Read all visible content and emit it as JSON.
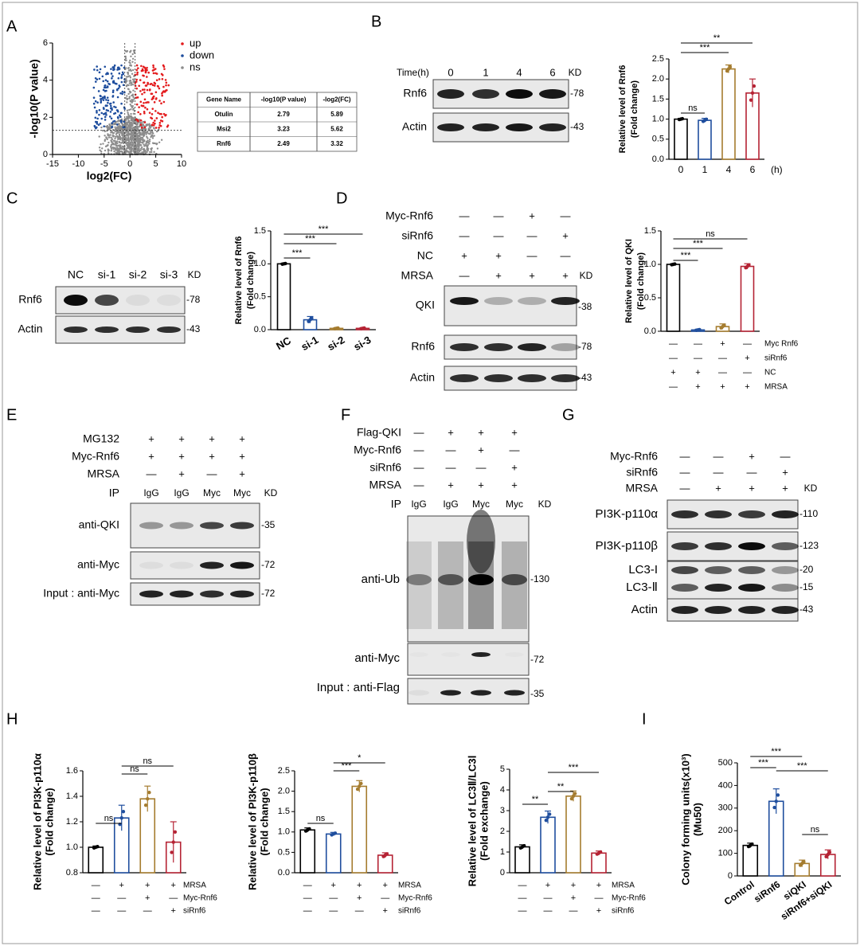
{
  "figure": {
    "panel_labels": [
      "A",
      "B",
      "C",
      "D",
      "E",
      "F",
      "G",
      "H",
      "I"
    ]
  },
  "colors": {
    "axis": "#000000",
    "up": "#e31a1c",
    "down": "#1f4e9e",
    "ns": "#8c8c8c",
    "black": "#000000",
    "blue": "#1f4e9e",
    "gold": "#a57c2f",
    "red": "#b52334",
    "blot_bg": "#e9e9e9"
  },
  "chart_data": [
    {
      "id": "A",
      "type": "scatter",
      "title": "",
      "xlabel": "log2(FC)",
      "ylabel": "-log10(P value)",
      "xlim": [
        -15,
        10
      ],
      "ylim": [
        0,
        6
      ],
      "xticks": [
        "-15",
        "-10",
        "-5",
        "0",
        "5",
        "10"
      ],
      "yticks": [
        "0",
        "2",
        "4",
        "6"
      ],
      "legend": [
        {
          "name": "up",
          "color": "#e31a1c"
        },
        {
          "name": "down",
          "color": "#1f4e9e"
        },
        {
          "name": "ns",
          "color": "#8c8c8c"
        }
      ],
      "table": {
        "headers": [
          "Gene Name",
          "-log10(P value)",
          "-log2(FC)"
        ],
        "rows": [
          [
            "Otulin",
            "2.79",
            "5.89"
          ],
          [
            "Msi2",
            "3.23",
            "5.62"
          ],
          [
            "Rnf6",
            "2.49",
            "3.32"
          ]
        ]
      }
    },
    {
      "id": "B",
      "type": "bar",
      "ylabel": "Relative  level of Rnf6 (Fold change)",
      "categories": [
        "0",
        "1",
        "4",
        "6"
      ],
      "x_unit": "(h)",
      "values": [
        1.0,
        0.97,
        2.25,
        1.65
      ],
      "errors": [
        0.02,
        0.05,
        0.1,
        0.35
      ],
      "ylim": [
        0,
        2.5
      ],
      "yticks": [
        "0.0",
        "0.5",
        "1.0",
        "1.5",
        "2.0",
        "2.5"
      ],
      "sig": [
        {
          "label": "ns",
          "from": 0,
          "to": 1
        },
        {
          "label": "***",
          "from": 0,
          "to": 2
        },
        {
          "label": "**",
          "from": 0,
          "to": 3
        }
      ],
      "blot": {
        "time_label": "Time(h)",
        "lanes": [
          "0",
          "1",
          "4",
          "6"
        ],
        "kd": "KD",
        "rows": [
          {
            "name": "Rnf6",
            "kd": "-78"
          },
          {
            "name": "Actin",
            "kd": "-43"
          }
        ]
      }
    },
    {
      "id": "C",
      "type": "bar",
      "ylabel": "Relative  level of Rnf6 (Fold change)",
      "categories": [
        "NC",
        "si-1",
        "si-2",
        "si-3"
      ],
      "values": [
        1.0,
        0.15,
        0.02,
        0.02
      ],
      "errors": [
        0.01,
        0.05,
        0.01,
        0.01
      ],
      "ylim": [
        0,
        1.5
      ],
      "yticks": [
        "0.0",
        "0.5",
        "1.0",
        "1.5"
      ],
      "sig": [
        {
          "label": "***",
          "from": 0,
          "to": 1
        },
        {
          "label": "***",
          "from": 0,
          "to": 2
        },
        {
          "label": "***",
          "from": 0,
          "to": 3
        }
      ],
      "blot": {
        "lanes": [
          "NC",
          "si-1",
          "si-2",
          "si-3"
        ],
        "kd": "KD",
        "rows": [
          {
            "name": "Rnf6",
            "kd": "-78"
          },
          {
            "name": "Actin",
            "kd": "-43"
          }
        ]
      }
    },
    {
      "id": "D",
      "type": "bar",
      "ylabel": "Relative  level of QKI (Fold change)",
      "categories": [
        "1",
        "2",
        "3",
        "4"
      ],
      "values": [
        1.0,
        0.02,
        0.07,
        0.97
      ],
      "errors": [
        0.01,
        0.01,
        0.04,
        0.04
      ],
      "ylim": [
        0,
        1.5
      ],
      "yticks": [
        "0.0",
        "0.5",
        "1.0",
        "1.5"
      ],
      "sig": [
        {
          "label": "***",
          "from": 0,
          "to": 1
        },
        {
          "label": "***",
          "from": 0,
          "to": 2
        },
        {
          "label": "ns",
          "from": 0,
          "to": 3
        }
      ],
      "conditions": [
        {
          "name": "Myc  Rnf6",
          "signs": [
            "—",
            "—",
            "+",
            "—"
          ]
        },
        {
          "name": "siRnf6",
          "signs": [
            "—",
            "—",
            "—",
            "+"
          ]
        },
        {
          "name": "NC",
          "signs": [
            "+",
            "+",
            "—",
            "—"
          ]
        },
        {
          "name": "MRSA",
          "signs": [
            "—",
            "+",
            "+",
            "+"
          ]
        }
      ],
      "blot": {
        "conditions": [
          {
            "name": "Myc-Rnf6",
            "signs": [
              "—",
              "—",
              "+",
              "—"
            ]
          },
          {
            "name": "siRnf6",
            "signs": [
              "—",
              "—",
              "—",
              "+"
            ]
          },
          {
            "name": "NC",
            "signs": [
              "+",
              "+",
              "—",
              "—"
            ]
          },
          {
            "name": "MRSA",
            "signs": [
              "—",
              "+",
              "+",
              "+"
            ]
          }
        ],
        "kd": "KD",
        "rows": [
          {
            "name": "QKI",
            "kd": "-38"
          },
          {
            "name": "Rnf6",
            "kd": "-78"
          },
          {
            "name": "Actin",
            "kd": "-43"
          }
        ]
      }
    },
    {
      "id": "E",
      "type": "blot",
      "conditions": [
        {
          "name": "MG132",
          "signs": [
            "+",
            "+",
            "+",
            "+"
          ]
        },
        {
          "name": "Myc-Rnf6",
          "signs": [
            "+",
            "+",
            "+",
            "+"
          ]
        },
        {
          "name": "MRSA",
          "signs": [
            "—",
            "+",
            "—",
            "+"
          ]
        }
      ],
      "ip_label": "IP",
      "lanes": [
        "IgG",
        "IgG",
        "Myc",
        "Myc"
      ],
      "kd": "KD",
      "rows": [
        {
          "name": "anti-QKI",
          "kd": "-35"
        },
        {
          "name": "anti-Myc",
          "kd": "-72"
        },
        {
          "name": "Input : anti-Myc",
          "kd": "-72"
        }
      ]
    },
    {
      "id": "F",
      "type": "blot",
      "conditions": [
        {
          "name": "Flag-QKI",
          "signs": [
            "—",
            "+",
            "+",
            "+"
          ]
        },
        {
          "name": "Myc-Rnf6",
          "signs": [
            "—",
            "—",
            "+",
            "—"
          ]
        },
        {
          "name": "siRnf6",
          "signs": [
            "—",
            "—",
            "—",
            "+"
          ]
        },
        {
          "name": "MRSA",
          "signs": [
            "—",
            "+",
            "+",
            "+"
          ]
        }
      ],
      "ip_label": "IP",
      "lanes": [
        "IgG",
        "IgG",
        "Myc",
        "Myc"
      ],
      "kd": "KD",
      "rows": [
        {
          "name": "anti-Ub",
          "kd": "-130"
        },
        {
          "name": "anti-Myc",
          "kd": "-72"
        },
        {
          "name": "Input : anti-Flag",
          "kd": "-35"
        }
      ]
    },
    {
      "id": "G",
      "type": "blot",
      "conditions": [
        {
          "name": "Myc-Rnf6",
          "signs": [
            "—",
            "—",
            "+",
            "—"
          ]
        },
        {
          "name": "siRnf6",
          "signs": [
            "—",
            "—",
            "—",
            "+"
          ]
        },
        {
          "name": "MRSA",
          "signs": [
            "—",
            "+",
            "+",
            "+"
          ]
        }
      ],
      "kd": "KD",
      "rows": [
        {
          "name": "PI3K-p110α",
          "kd": "-110"
        },
        {
          "name": "PI3K-p110β",
          "kd": "-123"
        },
        {
          "name": "LC3-I",
          "kd": "-20"
        },
        {
          "name": "LC3-Ⅱ",
          "kd": "-15"
        },
        {
          "name": "Actin",
          "kd": "-43"
        }
      ]
    },
    {
      "id": "H1",
      "type": "bar",
      "ylabel": "Relative  level of PI3K-p110α (Fold change)",
      "categories": [
        "1",
        "2",
        "3",
        "4"
      ],
      "values": [
        1.0,
        1.23,
        1.38,
        1.04
      ],
      "errors": [
        0.01,
        0.1,
        0.1,
        0.16
      ],
      "ylim": [
        0.8,
        1.6
      ],
      "yticks": [
        "0.8",
        "1.0",
        "1.2",
        "1.4",
        "1.6"
      ],
      "sig": [
        {
          "label": "ns",
          "from": 0,
          "to": 1
        },
        {
          "label": "ns",
          "from": 1,
          "to": 2
        },
        {
          "label": "ns",
          "from": 1,
          "to": 3
        }
      ],
      "conditions": [
        {
          "name": "MRSA",
          "signs": [
            "—",
            "+",
            "+",
            "+"
          ]
        },
        {
          "name": "Myc-Rnf6",
          "signs": [
            "—",
            "—",
            "+",
            "—"
          ]
        },
        {
          "name": "siRnf6",
          "signs": [
            "—",
            "—",
            "—",
            "+"
          ]
        }
      ]
    },
    {
      "id": "H2",
      "type": "bar",
      "ylabel": "Relative  level of PI3K-p110β (Fold change)",
      "categories": [
        "1",
        "2",
        "3",
        "4"
      ],
      "values": [
        1.05,
        0.95,
        2.12,
        0.43
      ],
      "errors": [
        0.05,
        0.04,
        0.14,
        0.06
      ],
      "ylim": [
        0,
        2.5
      ],
      "yticks": [
        "0.0",
        "0.5",
        "1.0",
        "1.5",
        "2.0",
        "2.5"
      ],
      "sig": [
        {
          "label": "ns",
          "from": 0,
          "to": 1
        },
        {
          "label": "***",
          "from": 1,
          "to": 2
        },
        {
          "label": "*",
          "from": 1,
          "to": 3
        }
      ],
      "conditions": [
        {
          "name": "MRSA",
          "signs": [
            "—",
            "+",
            "+",
            "+"
          ]
        },
        {
          "name": "Myc-Rnf6",
          "signs": [
            "—",
            "—",
            "+",
            "—"
          ]
        },
        {
          "name": "siRnf6",
          "signs": [
            "—",
            "—",
            "—",
            "+"
          ]
        }
      ]
    },
    {
      "id": "H3",
      "type": "bar",
      "ylabel": "Relative  level of LC3Ⅱ/LC3Ⅰ (Fold exchange)",
      "categories": [
        "1",
        "2",
        "3",
        "4"
      ],
      "values": [
        1.25,
        2.68,
        3.7,
        0.95
      ],
      "errors": [
        0.1,
        0.3,
        0.25,
        0.1
      ],
      "ylim": [
        0,
        5
      ],
      "yticks": [
        "0",
        "1",
        "2",
        "3",
        "4",
        "5"
      ],
      "sig": [
        {
          "label": "**",
          "from": 0,
          "to": 1
        },
        {
          "label": "**",
          "from": 1,
          "to": 2
        },
        {
          "label": "***",
          "from": 1,
          "to": 3
        }
      ],
      "conditions": [
        {
          "name": "MRSA",
          "signs": [
            "—",
            "+",
            "+",
            "+"
          ]
        },
        {
          "name": "Myc-Rnf6",
          "signs": [
            "—",
            "—",
            "+",
            "—"
          ]
        },
        {
          "name": "siRnf6",
          "signs": [
            "—",
            "—",
            "—",
            "+"
          ]
        }
      ]
    },
    {
      "id": "I",
      "type": "bar",
      "ylabel": "Colony forming units(x10³) (Mu50)",
      "categories": [
        "Control",
        "siRnf6",
        "siQKI",
        "siRnf6+siQKI"
      ],
      "values": [
        135,
        330,
        55,
        95
      ],
      "errors": [
        10,
        55,
        15,
        20
      ],
      "ylim": [
        0,
        500
      ],
      "yticks": [
        "0",
        "100",
        "200",
        "300",
        "400",
        "500"
      ],
      "sig": [
        {
          "label": "***",
          "from": 0,
          "to": 1
        },
        {
          "label": "***",
          "from": 0,
          "to": 2
        },
        {
          "label": "***",
          "from": 1,
          "to": 3
        },
        {
          "label": "ns",
          "from": 2,
          "to": 3
        }
      ]
    }
  ]
}
